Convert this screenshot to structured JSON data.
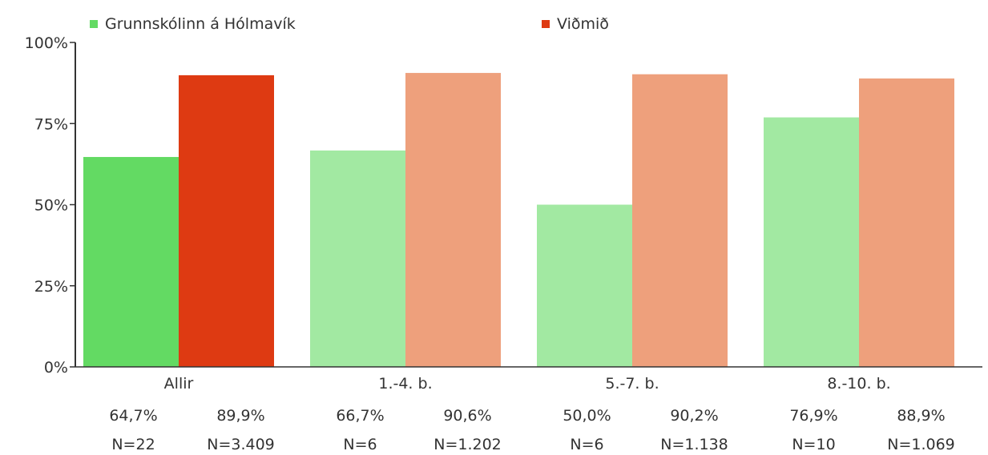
{
  "chart_data": {
    "type": "bar",
    "categories": [
      "Allir",
      "1.-4. b.",
      "5.-7. b.",
      "8.-10. b."
    ],
    "series": [
      {
        "name": "Grunnskólinn á Hólmavík",
        "values": [
          64.7,
          66.7,
          50.0,
          76.9
        ],
        "labels": [
          "64,7%",
          "66,7%",
          "50,0%",
          "76,9%"
        ],
        "n": [
          "N=22",
          "N=6",
          "N=6",
          "N=10"
        ],
        "color": "#63da63",
        "light_color": "#a2e9a2"
      },
      {
        "name": "Viðmið",
        "values": [
          89.9,
          90.6,
          90.2,
          88.9
        ],
        "labels": [
          "89,9%",
          "90,6%",
          "90,2%",
          "88,9%"
        ],
        "n": [
          "N=3.409",
          "N=1.202",
          "N=1.138",
          "N=1.069"
        ],
        "color": "#de3a12",
        "light_color": "#eea07c"
      }
    ],
    "highlight_category_index": 0,
    "ylim": [
      0,
      100
    ],
    "yticks": [
      0,
      25,
      50,
      75,
      100
    ],
    "ytick_labels": [
      "0%",
      "25%",
      "50%",
      "75%",
      "100%"
    ],
    "xlabel": "",
    "ylabel": "",
    "legend_position": "top",
    "grid": false
  }
}
